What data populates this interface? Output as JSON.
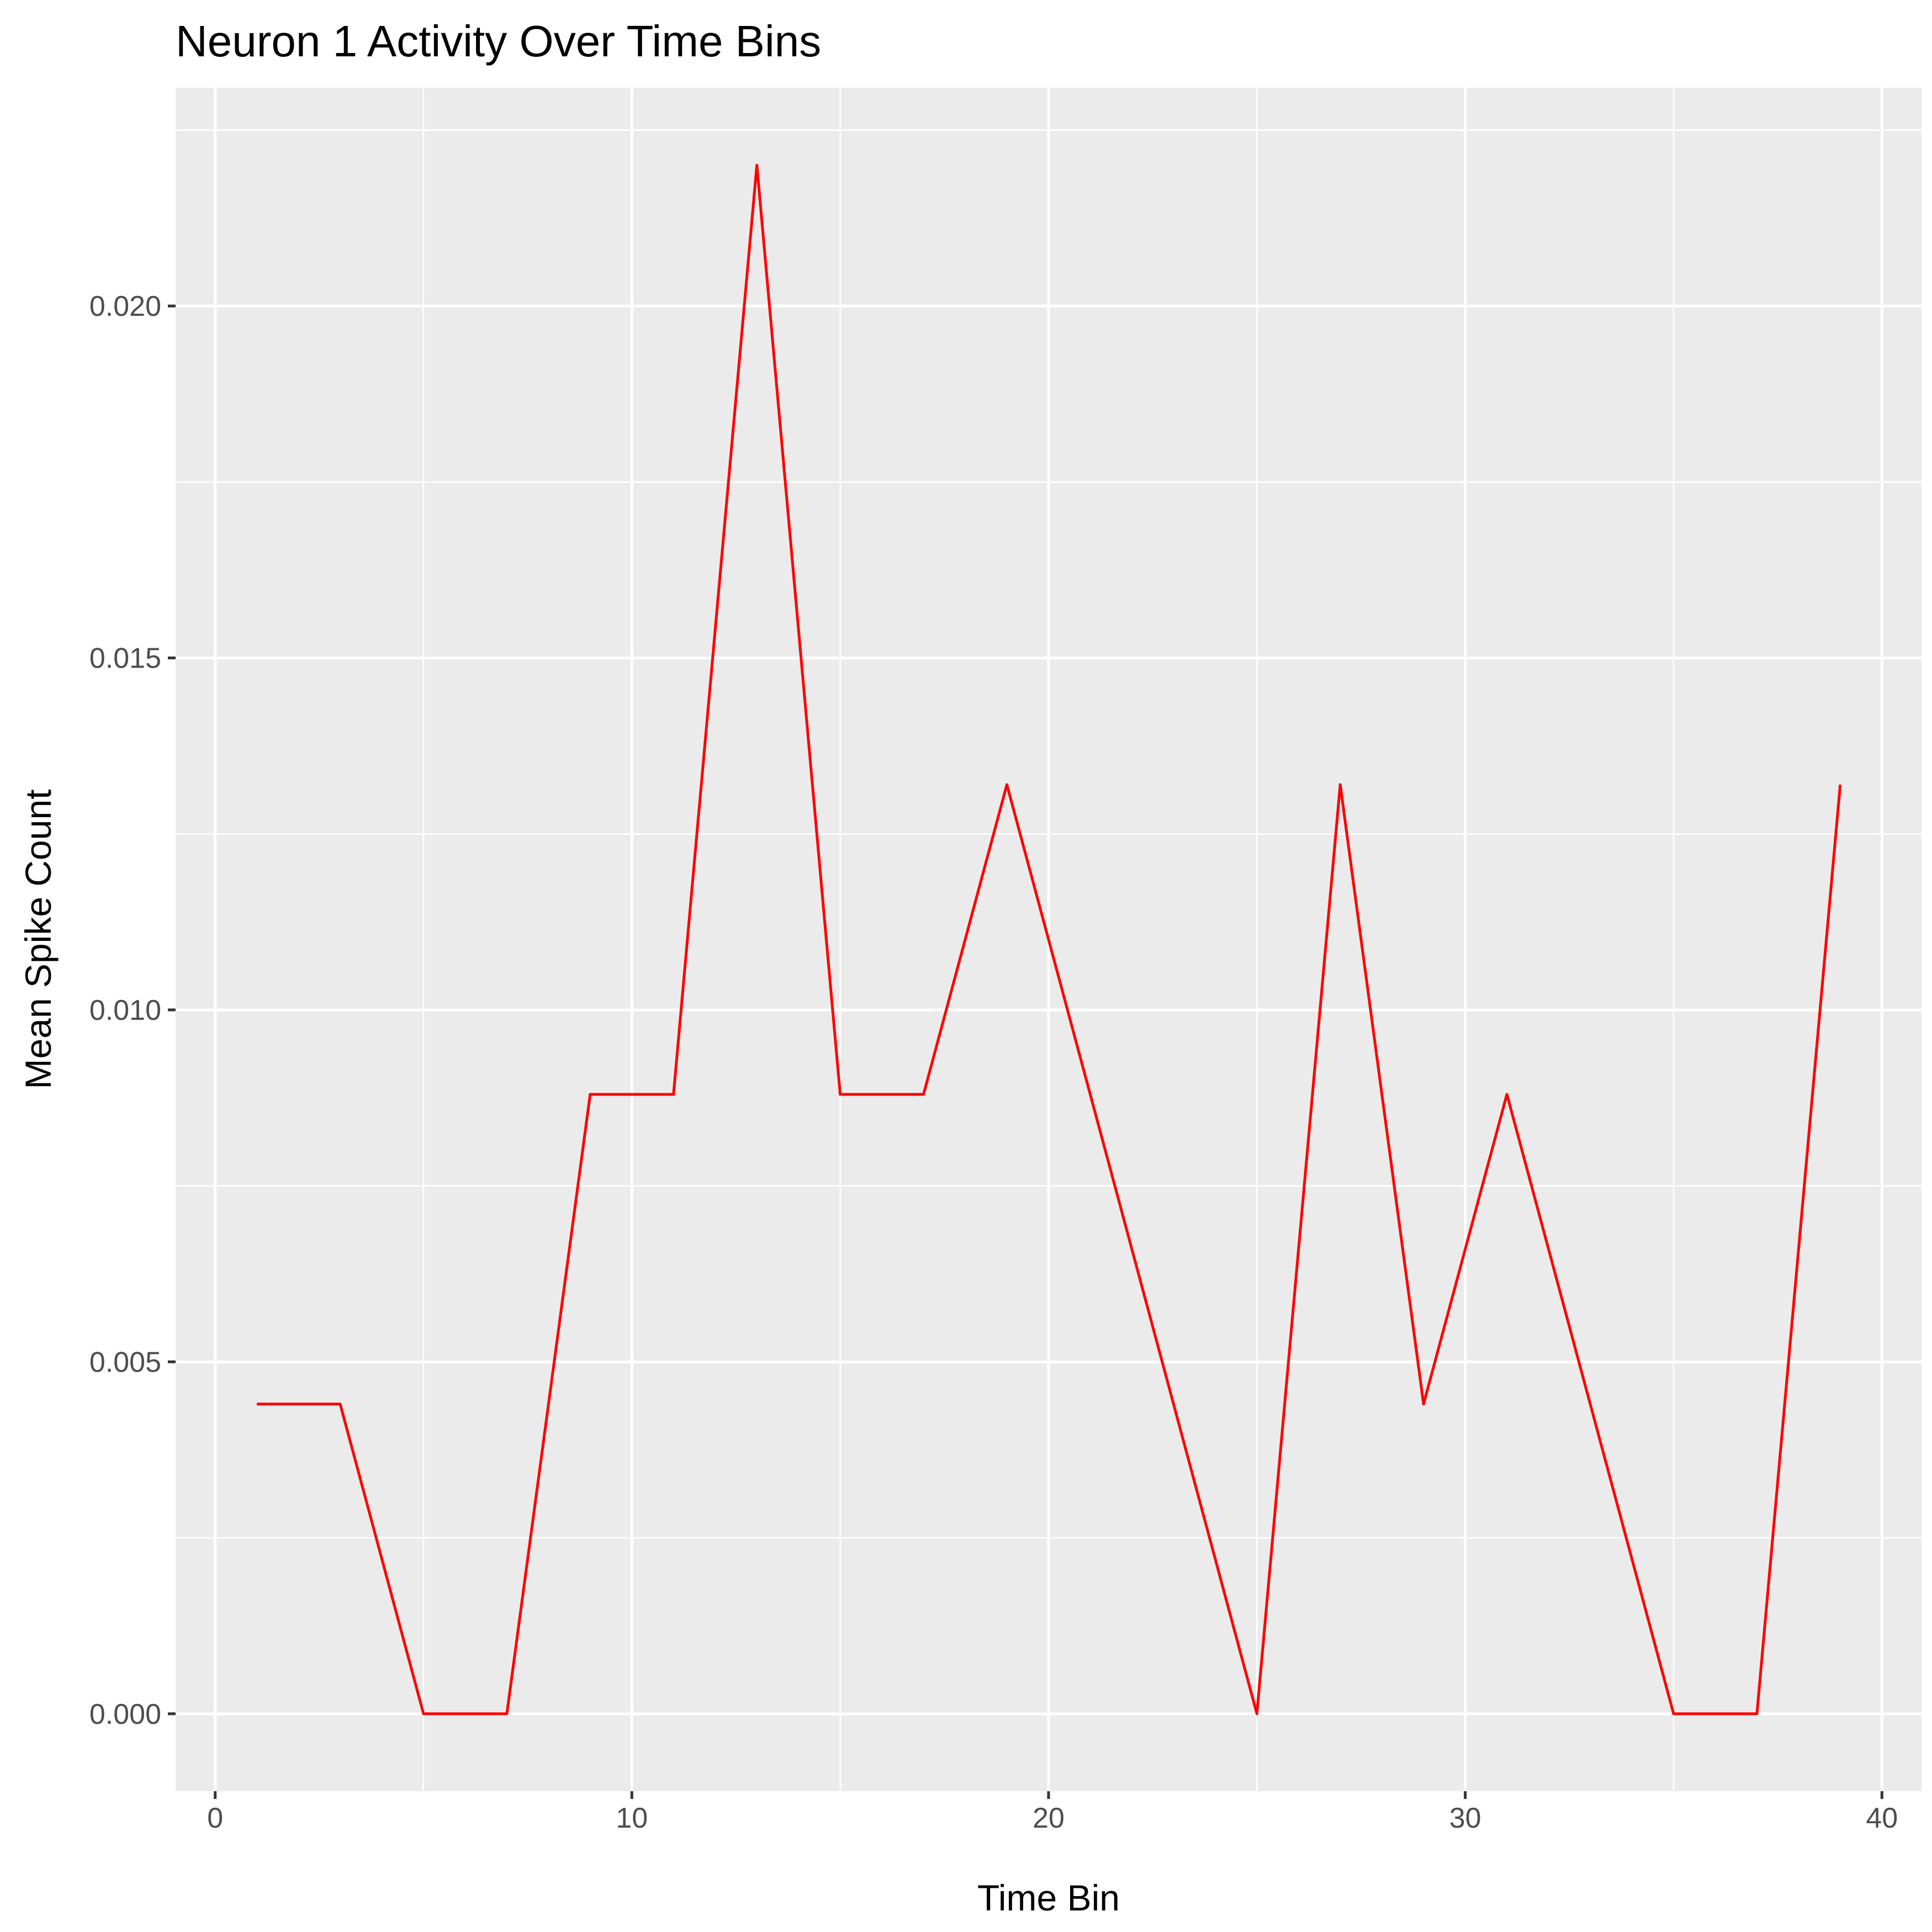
{
  "chart_data": {
    "type": "line",
    "title": "Neuron 1 Activity Over Time Bins",
    "xlabel": "Time Bin",
    "ylabel": "Mean Spike Count",
    "xlim": [
      -0.95,
      40.95
    ],
    "ylim": [
      -0.0011,
      0.0231
    ],
    "x_ticks": [
      0,
      10,
      20,
      30,
      40
    ],
    "x_tick_labels": [
      "0",
      "10",
      "20",
      "30",
      "40"
    ],
    "x_minor_ticks": [
      5,
      15,
      25,
      35
    ],
    "y_ticks": [
      0,
      0.005,
      0.01,
      0.015,
      0.02
    ],
    "y_tick_labels": [
      "0.000",
      "0.005",
      "0.010",
      "0.015",
      "0.020"
    ],
    "y_minor_ticks": [
      0.0025,
      0.0075,
      0.0125,
      0.0175,
      0.0225
    ],
    "grid": true,
    "background": "#EBEBEB",
    "grid_color": "#FFFFFF",
    "series": [
      {
        "color": "#FF0000",
        "x": [
          1,
          3,
          5,
          7,
          9,
          11,
          13,
          15,
          17,
          19,
          21,
          23,
          25,
          27,
          29,
          31,
          33,
          35,
          37,
          39
        ],
        "values": [
          0.0044,
          0.0044,
          0.0,
          0.0,
          0.0088,
          0.0088,
          0.022,
          0.0088,
          0.0088,
          0.0132,
          0.0088,
          0.0044,
          0.0,
          0.0132,
          0.0044,
          0.0088,
          0.0044,
          0.0,
          0.0,
          0.0132
        ]
      }
    ]
  }
}
